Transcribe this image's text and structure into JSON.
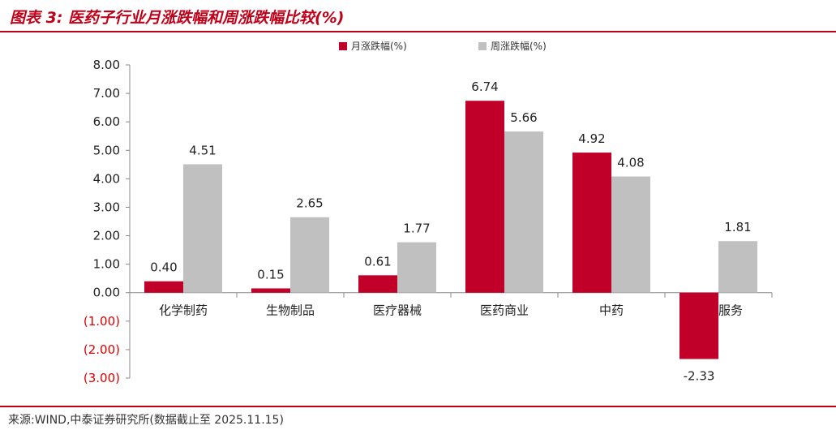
{
  "header": {
    "title": "图表 3:  医药子行业月涨跌幅和周涨跌幅比较(%)"
  },
  "footer": {
    "source": "来源:WIND,中泰证券研究所(数据截止至 2025.11.15)"
  },
  "colors": {
    "monthly": "#c00028",
    "weekly": "#c0c0c0",
    "negative_tick": "#e00000",
    "axis": "#888888",
    "accent": "#c00018"
  },
  "chart_data": {
    "type": "bar",
    "categories": [
      "化学制药",
      "生物制品",
      "医疗器械",
      "医药商业",
      "中药",
      "医疗服务"
    ],
    "series": [
      {
        "name": "月涨跌幅(%)",
        "values": [
          0.4,
          0.15,
          0.61,
          6.74,
          4.92,
          -2.33
        ]
      },
      {
        "name": "周涨跌幅(%)",
        "values": [
          4.51,
          2.65,
          1.77,
          5.66,
          4.08,
          1.81
        ]
      }
    ],
    "ylim": [
      -3,
      8
    ],
    "yticks": [
      8,
      7,
      6,
      5,
      4,
      3,
      2,
      1,
      0,
      -1,
      -2,
      -3
    ],
    "ytick_labels": [
      "8.00",
      "7.00",
      "6.00",
      "5.00",
      "4.00",
      "3.00",
      "2.00",
      "1.00",
      "0.00",
      "(1.00)",
      "(2.00)",
      "(3.00)"
    ],
    "data_labels": [
      [
        "0.40",
        "0.15",
        "0.61",
        "6.74",
        "4.92",
        "-2.33"
      ],
      [
        "4.51",
        "2.65",
        "1.77",
        "5.66",
        "4.08",
        "1.81"
      ]
    ],
    "legend_position": "top-center",
    "grid": false
  }
}
